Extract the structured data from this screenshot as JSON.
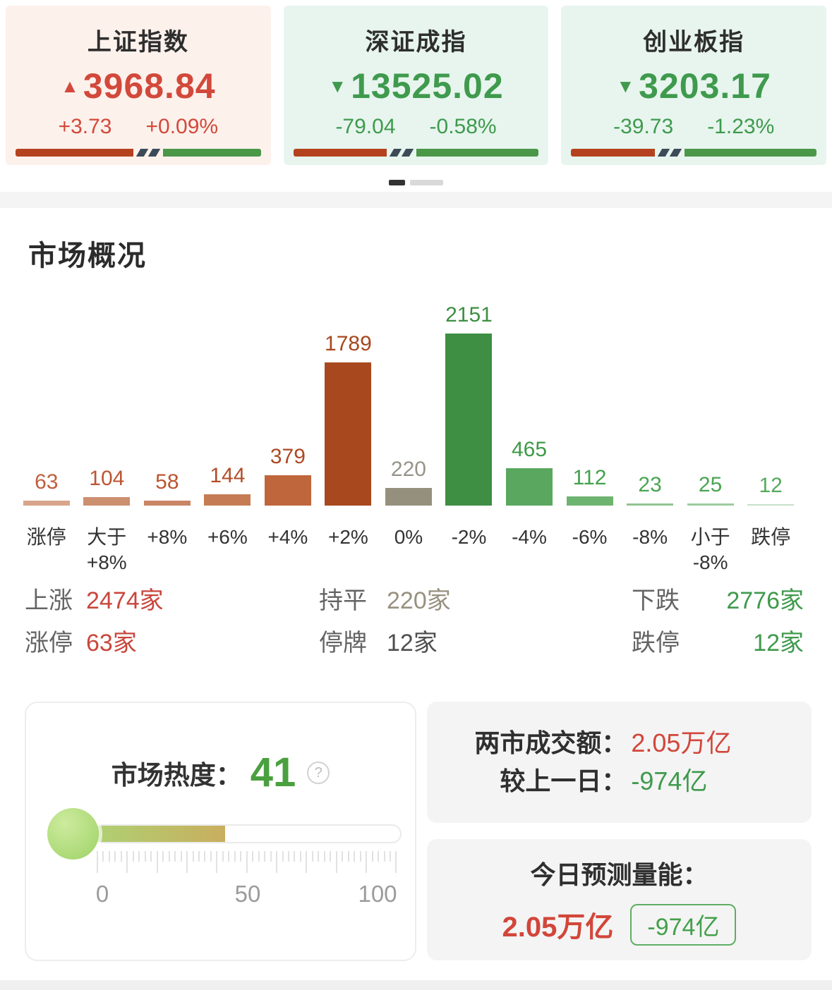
{
  "colors": {
    "up_red": "#c9473d",
    "down_green": "#3f9a4d",
    "index_bar_red": "#b5421e",
    "index_bar_green": "#4a9748",
    "index_bar_divider": "#3d4a58"
  },
  "indices": [
    {
      "name": "上证指数",
      "arrow": "▲",
      "value": "3968.84",
      "change": "+3.73",
      "change_pct": "+0.09%",
      "color": "#d2493b",
      "bg": "#fdf1ec",
      "up_width": "48%"
    },
    {
      "name": "深证成指",
      "arrow": "▼",
      "value": "13525.02",
      "change": "-79.04",
      "change_pct": "-0.58%",
      "color": "#3f9a4d",
      "bg": "#e7f5ee",
      "up_width": "38%"
    },
    {
      "name": "创业板指",
      "arrow": "▼",
      "value": "3203.17",
      "change": "-39.73",
      "change_pct": "-1.23%",
      "color": "#3f9a4d",
      "bg": "#e7f5ee",
      "up_width": "34%"
    }
  ],
  "pager": {
    "pages": 2,
    "active": 0
  },
  "market_overview": {
    "title": "市场概况",
    "chart_data": {
      "type": "bar",
      "title": "市场概况",
      "categories": [
        "涨停",
        "大于+8%",
        "+8%",
        "+6%",
        "+4%",
        "+2%",
        "0%",
        "-2%",
        "-4%",
        "-6%",
        "-8%",
        "小于-8%",
        "跌停"
      ],
      "category_lines": [
        [
          "涨停"
        ],
        [
          "大于",
          "+8%"
        ],
        [
          "+8%"
        ],
        [
          "+6%"
        ],
        [
          "+4%"
        ],
        [
          "+2%"
        ],
        [
          "0%"
        ],
        [
          "-2%"
        ],
        [
          "-4%"
        ],
        [
          "-6%"
        ],
        [
          "-8%"
        ],
        [
          "小于",
          "-8%"
        ],
        [
          "跌停"
        ]
      ],
      "values": [
        63,
        104,
        58,
        144,
        379,
        1789,
        220,
        2151,
        465,
        112,
        23,
        25,
        12
      ],
      "y_max": 2151,
      "grid": false,
      "legend": false,
      "bar_colors": [
        "#d8a48b",
        "#cc8f70",
        "#c98564",
        "#c57c54",
        "#bf663c",
        "#a8481e",
        "#95907e",
        "#3e8f43",
        "#5aa75f",
        "#6db471",
        "#90c392",
        "#9ccb9e",
        "#c9e0ca"
      ],
      "value_label_colors": [
        "#bf5f3d",
        "#bb5532",
        "#bb5532",
        "#b34e2b",
        "#ad4a24",
        "#a8481e",
        "#97938a",
        "#3e8f43",
        "#3f9a48",
        "#44a04c",
        "#4aa552",
        "#4aa552",
        "#55aa5c"
      ]
    },
    "summary": {
      "rows": [
        {
          "cells": [
            {
              "label": "上涨",
              "value": "2474家",
              "color": "#c9473d"
            },
            {
              "label": "持平",
              "value": "220家",
              "color": "#97917f"
            },
            {
              "label": "下跌",
              "value": "2776家",
              "color": "#3f9a4d"
            }
          ]
        },
        {
          "cells": [
            {
              "label": "涨停",
              "value": "63家",
              "color": "#c9473d"
            },
            {
              "label": "停牌",
              "value": "12家",
              "color": "#4f4f4f"
            },
            {
              "label": "跌停",
              "value": "12家",
              "color": "#3f9a4d"
            }
          ]
        }
      ]
    }
  },
  "heat": {
    "label": "市场热度：",
    "value": "41",
    "value_color": "#4aa03f",
    "help_icon": "?",
    "scale": [
      "0",
      "50",
      "100"
    ],
    "fill_width": "48%",
    "fill_from": "#a9d878",
    "fill_to": "#c9ae5e",
    "bulb_from": "#cdeb9e",
    "bulb_to": "#9ed266"
  },
  "turnover": {
    "rows": [
      {
        "label": "两市成交额：",
        "value": "2.05万亿",
        "color": "#d2463a"
      },
      {
        "label": "较上一日：",
        "value": "-974亿",
        "color": "#3f9a4d"
      }
    ]
  },
  "forecast": {
    "title": "今日预测量能：",
    "value": "2.05万亿",
    "value_color": "#d2463a",
    "badge": "-974亿",
    "badge_color": "#43a04b"
  }
}
